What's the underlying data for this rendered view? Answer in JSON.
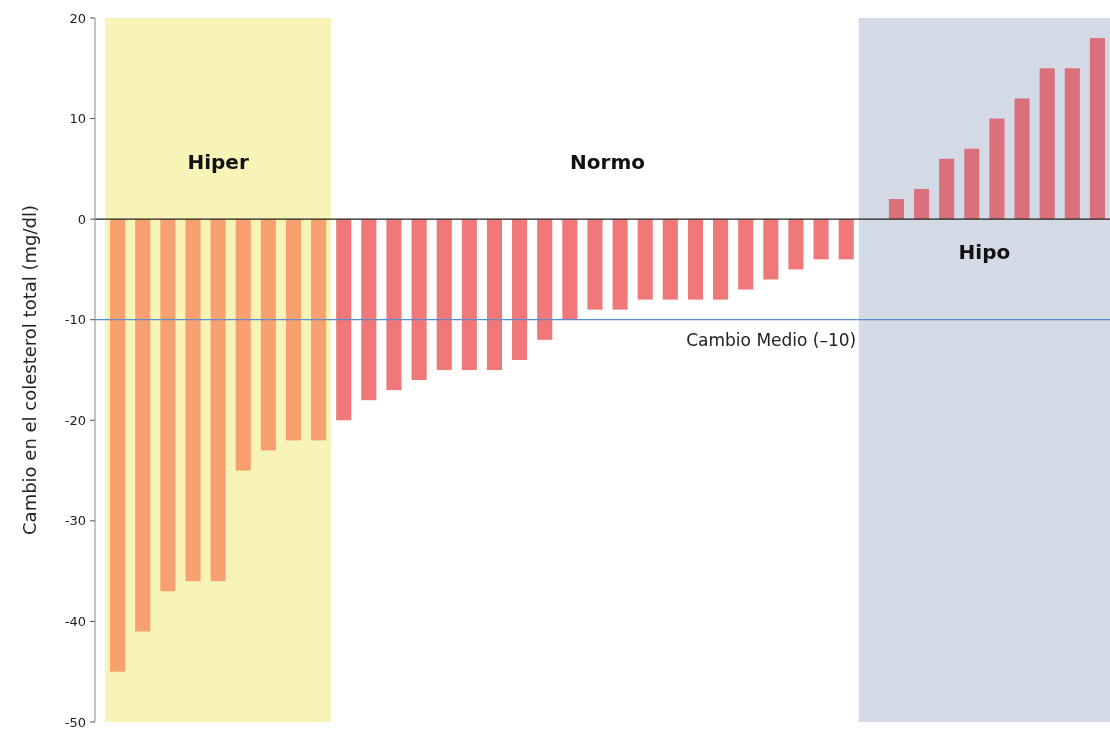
{
  "chart_data": {
    "type": "bar",
    "ylabel": "Cambio en el colesterol total (mg/dl)",
    "categories": [
      null,
      null,
      null,
      null,
      null,
      null,
      null,
      null,
      null,
      null,
      null,
      null,
      null,
      null,
      null,
      null,
      null,
      null,
      null,
      null,
      null,
      null,
      null,
      null,
      null,
      null,
      null,
      null,
      null,
      null,
      null,
      null,
      null,
      null,
      null,
      null,
      null,
      null,
      null,
      null
    ],
    "ylim": [
      -50,
      20
    ],
    "yticks": [
      -50,
      -40,
      -30,
      -20,
      -10,
      0,
      10,
      20
    ],
    "tick_labels": "y",
    "grid": false,
    "values": [
      -45,
      -41,
      -37,
      -36,
      -36,
      -25,
      -23,
      -22,
      -22,
      -20,
      -18,
      -17,
      -16,
      -15,
      -15,
      -15,
      -14,
      -12,
      -10,
      -9,
      -9,
      -8,
      -8,
      -8,
      -8,
      -7,
      -6,
      -5,
      -4,
      -4,
      null,
      2,
      3,
      6,
      7,
      10,
      12,
      15,
      15,
      18
    ],
    "colors": [
      "#f9a070",
      "#f9a070",
      "#f9a070",
      "#f9a070",
      "#f9a070",
      "#f9a070",
      "#f9a070",
      "#f9a070",
      "#f9a070",
      "#f07878",
      "#f07878",
      "#f07878",
      "#f07878",
      "#f07878",
      "#f07878",
      "#f07878",
      "#f07878",
      "#f07878",
      "#f07878",
      "#f07878",
      "#f07878",
      "#f07878",
      "#f07878",
      "#f07878",
      "#f07878",
      "#f07878",
      "#f07878",
      "#f07878",
      "#f07878",
      "#f07878",
      null,
      "#d9707a",
      "#d9707a",
      "#d9707a",
      "#d9707a",
      "#d9707a",
      "#d9707a",
      "#d9707a",
      "#d9707a",
      "#d9707a"
    ],
    "ref_lines": [
      {
        "axis": "y",
        "value": -10,
        "label": "Cambio Medio (–10)",
        "color": "#5b8bd0"
      }
    ],
    "annotations": [
      "Hiper",
      "Normo",
      "Hipo"
    ]
  }
}
